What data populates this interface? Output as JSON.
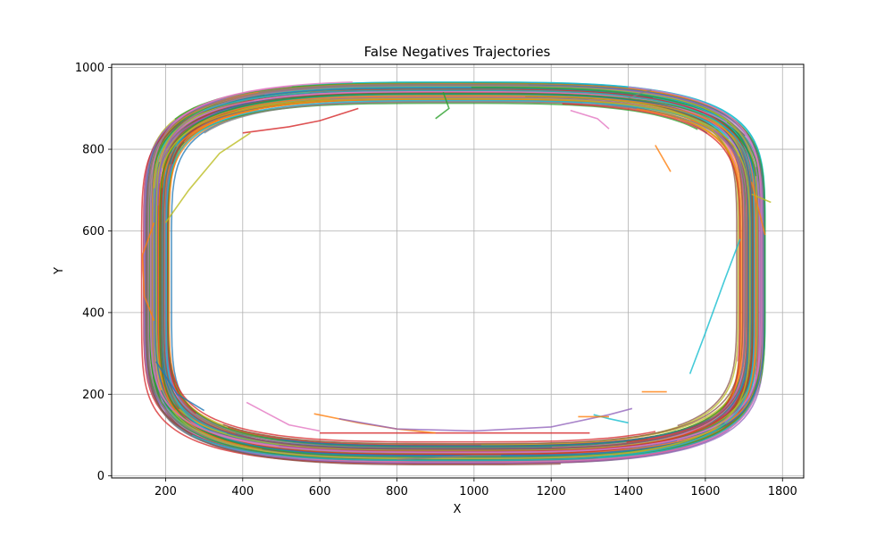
{
  "chart_data": {
    "type": "line",
    "title": "False Negatives Trajectories",
    "xlabel": "X",
    "ylabel": "Y",
    "xlim": [
      60,
      1855
    ],
    "ylim": [
      -5,
      1008
    ],
    "xticks": [
      200,
      400,
      600,
      800,
      1000,
      1200,
      1400,
      1600,
      1800
    ],
    "yticks": [
      0,
      200,
      400,
      600,
      800,
      1000
    ],
    "grid": true,
    "legend": "none",
    "loop": {
      "center": [
        948,
        497
      ],
      "x_extent": [
        175,
        1720
      ],
      "y_extent": [
        55,
        940
      ],
      "shape": "stadium",
      "trajectory_count": 120
    },
    "palette": [
      "#1f77b4",
      "#ff7f0e",
      "#2ca02c",
      "#d62728",
      "#9467bd",
      "#8c564b",
      "#e377c2",
      "#7f7f7f",
      "#bcbd22",
      "#17becf"
    ],
    "series": [
      {
        "color": "#d62728",
        "x": [
          600,
          800,
          1000,
          1200,
          1300
        ],
        "y": [
          105,
          105,
          105,
          105,
          105
        ]
      },
      {
        "color": "#ff7f0e",
        "x": [
          585,
          700,
          800,
          900
        ],
        "y": [
          152,
          130,
          115,
          105
        ]
      },
      {
        "color": "#e377c2",
        "x": [
          410,
          470,
          520,
          600
        ],
        "y": [
          180,
          150,
          125,
          110
        ]
      },
      {
        "color": "#9467bd",
        "x": [
          650,
          800,
          1000,
          1200,
          1350,
          1410
        ],
        "y": [
          140,
          115,
          110,
          120,
          150,
          165
        ]
      },
      {
        "color": "#17becf",
        "x": [
          1310,
          1350,
          1400
        ],
        "y": [
          150,
          140,
          130
        ]
      },
      {
        "color": "#ff7f0e",
        "x": [
          1270,
          1350
        ],
        "y": [
          145,
          145
        ]
      },
      {
        "color": "#ff7f0e",
        "x": [
          1435,
          1500
        ],
        "y": [
          206,
          206
        ]
      },
      {
        "color": "#17becf",
        "x": [
          1560,
          1600,
          1650,
          1690
        ],
        "y": [
          250,
          350,
          480,
          580
        ]
      },
      {
        "color": "#bcbd22",
        "x": [
          1720,
          1770
        ],
        "y": [
          690,
          670
        ]
      },
      {
        "color": "#ff7f0e",
        "x": [
          1720,
          1755
        ],
        "y": [
          720,
          590
        ]
      },
      {
        "color": "#ff7f0e",
        "x": [
          1470,
          1510
        ],
        "y": [
          810,
          745
        ]
      },
      {
        "color": "#e377c2",
        "x": [
          1250,
          1320,
          1350
        ],
        "y": [
          895,
          875,
          850
        ]
      },
      {
        "color": "#1f77b4",
        "x": [
          175,
          230,
          300
        ],
        "y": [
          280,
          200,
          160
        ]
      },
      {
        "color": "#ff7f0e",
        "x": [
          170,
          140,
          145,
          170
        ],
        "y": [
          620,
          540,
          440,
          380
        ]
      },
      {
        "color": "#2ca02c",
        "x": [
          920,
          935,
          900
        ],
        "y": [
          940,
          900,
          875
        ]
      },
      {
        "color": "#7f7f7f",
        "x": [
          800,
          900,
          1000,
          1070
        ],
        "y": [
          40,
          45,
          50,
          50
        ]
      },
      {
        "color": "#d62728",
        "x": [
          400,
          520,
          600,
          700
        ],
        "y": [
          840,
          855,
          870,
          900
        ]
      },
      {
        "color": "#bcbd22",
        "x": [
          200,
          260,
          340,
          420
        ],
        "y": [
          620,
          700,
          790,
          840
        ]
      },
      {
        "color": "#7f7f7f",
        "x": [
          1400,
          1440,
          1460
        ],
        "y": [
          925,
          940,
          945
        ]
      }
    ]
  }
}
